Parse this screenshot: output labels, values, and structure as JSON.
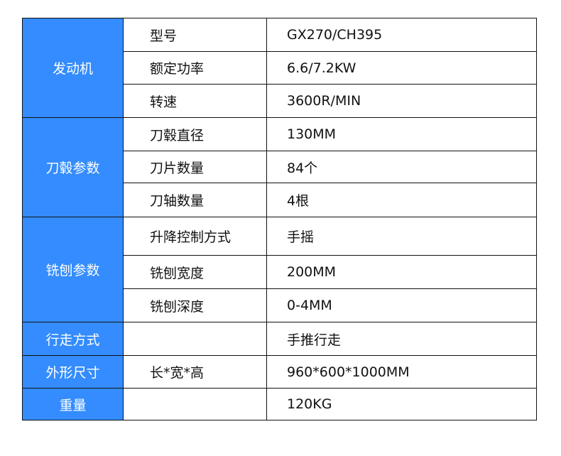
{
  "colors": {
    "category_bg": "#348cfe",
    "border": "#111111"
  },
  "groups": [
    {
      "category": "发动机",
      "rows": [
        {
          "name": "型号",
          "value": "GX270/CH395"
        },
        {
          "name": "额定功率",
          "value": "6.6/7.2KW"
        },
        {
          "name": "转速",
          "value": "3600R/MIN"
        }
      ]
    },
    {
      "category": "刀毂参数",
      "rows": [
        {
          "name": "刀毂直径",
          "value": "130MM"
        },
        {
          "name": "刀片数量",
          "value": "84个"
        },
        {
          "name": "刀轴数量",
          "value": "4根"
        }
      ]
    },
    {
      "category": "铣刨参数",
      "rows": [
        {
          "name": "升降控制方式",
          "value": "手摇"
        },
        {
          "name": "铣刨宽度",
          "value": "200MM"
        },
        {
          "name": "铣刨深度",
          "value": "0-4MM"
        }
      ]
    },
    {
      "category": "行走方式",
      "rows": [
        {
          "name": "",
          "value": "手推行走"
        }
      ]
    },
    {
      "category": "外形尺寸",
      "rows": [
        {
          "name": "长*宽*高",
          "value": "960*600*1000MM"
        }
      ]
    },
    {
      "category": "重量",
      "rows": [
        {
          "name": "",
          "value": "120KG"
        }
      ]
    }
  ]
}
